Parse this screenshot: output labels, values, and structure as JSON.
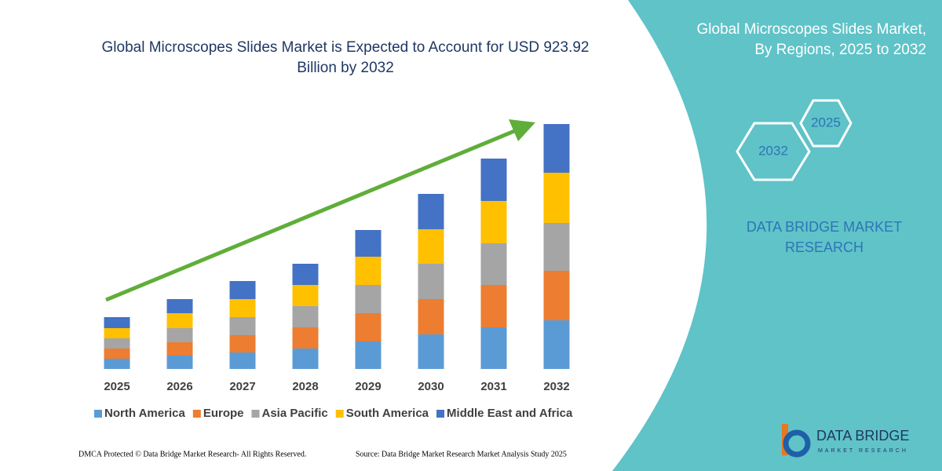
{
  "chart_data": {
    "type": "bar",
    "stacked": true,
    "title": "Global Microscopes Slides Market is Expected to Account for USD 923.92 Billion by 2032",
    "categories": [
      "2025",
      "2026",
      "2027",
      "2028",
      "2029",
      "2030",
      "2031",
      "2032"
    ],
    "series": [
      {
        "name": "North America",
        "color": "#5b9bd5",
        "values": [
          13,
          17,
          21,
          26,
          35,
          44,
          53,
          62
        ]
      },
      {
        "name": "Europe",
        "color": "#ed7d31",
        "values": [
          13,
          17,
          22,
          27,
          36,
          45,
          54,
          63
        ]
      },
      {
        "name": "Asia Pacific",
        "color": "#a5a5a5",
        "values": [
          13,
          18,
          23,
          27,
          36,
          45,
          53,
          61
        ]
      },
      {
        "name": "South America",
        "color": "#ffc000",
        "values": [
          13,
          19,
          23,
          27,
          36,
          44,
          54,
          64
        ]
      },
      {
        "name": "Middle East and Africa",
        "color": "#4472c4",
        "values": [
          14,
          18,
          23,
          27,
          34,
          45,
          54,
          62
        ]
      }
    ],
    "ylim": [
      0,
      320
    ],
    "grid": false,
    "legend": "bottom"
  },
  "side_panel": {
    "heading": "Global Microscopes Slides Market, By Regions, 2025 to 2032",
    "hex_labels": [
      "2025",
      "2032"
    ],
    "brand": "DATA BRIDGE MARKET RESEARCH"
  },
  "logo": {
    "name": "DATA BRIDGE",
    "tagline": "MARKET RESEARCH"
  },
  "footer": {
    "copyright": "DMCA Protected © Data Bridge Market Research-  All Rights Reserved.",
    "source": "Source: Data Bridge Market Research  Market Analysis Study 2025"
  }
}
